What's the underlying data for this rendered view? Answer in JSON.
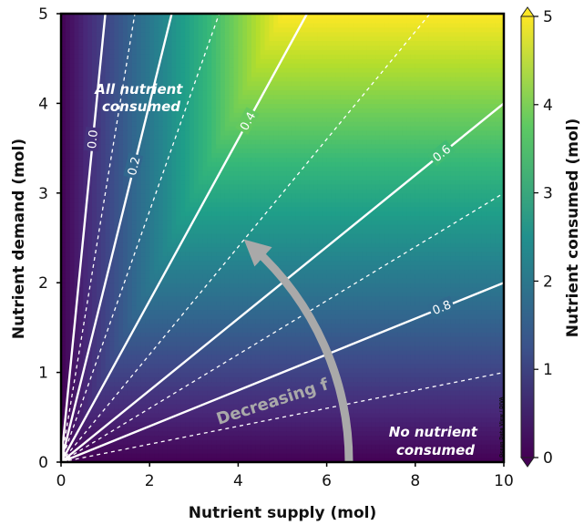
{
  "chart_data": {
    "type": "heatmap",
    "xlabel": "Nutrient supply (mol)",
    "ylabel": "Nutrient demand  (mol)",
    "colorbar_label": "Nutrient consumed (mol)",
    "xlim": [
      0,
      10
    ],
    "ylim": [
      0,
      5
    ],
    "clim": [
      0,
      5
    ],
    "colormap": "viridis",
    "x_ticks": [
      "0",
      "2",
      "4",
      "6",
      "8",
      "10"
    ],
    "y_ticks": [
      "0",
      "1",
      "2",
      "3",
      "4",
      "5"
    ],
    "colorbar_ticks": [
      "0",
      "1",
      "2",
      "3",
      "4",
      "5"
    ],
    "contours": [
      {
        "f": 0.0,
        "label": "0.0",
        "slope": 5.0
      },
      {
        "f": 0.2,
        "label": "0.2",
        "slope": 2.0
      },
      {
        "f": 0.4,
        "label": "0.4",
        "slope": 0.9
      },
      {
        "f": 0.6,
        "label": "0.6",
        "slope": 0.4
      },
      {
        "f": 0.8,
        "label": "0.8",
        "slope": 0.2
      }
    ],
    "dashed_slopes": [
      3.0,
      1.4,
      0.6,
      0.3,
      0.1
    ],
    "annotations": {
      "upper_left": [
        "All nutrient",
        "consumed"
      ],
      "lower_right": [
        "No nutrient",
        "consumed"
      ],
      "arrow": "Decreasing f"
    },
    "credit": "Ocean Data View / DIVA"
  },
  "colors": {
    "viridis_low": "#440154",
    "viridis_mid": "#21908d",
    "viridis_high": "#fde725",
    "contour": "#ffffff",
    "arrow": "#a9a9a9"
  }
}
